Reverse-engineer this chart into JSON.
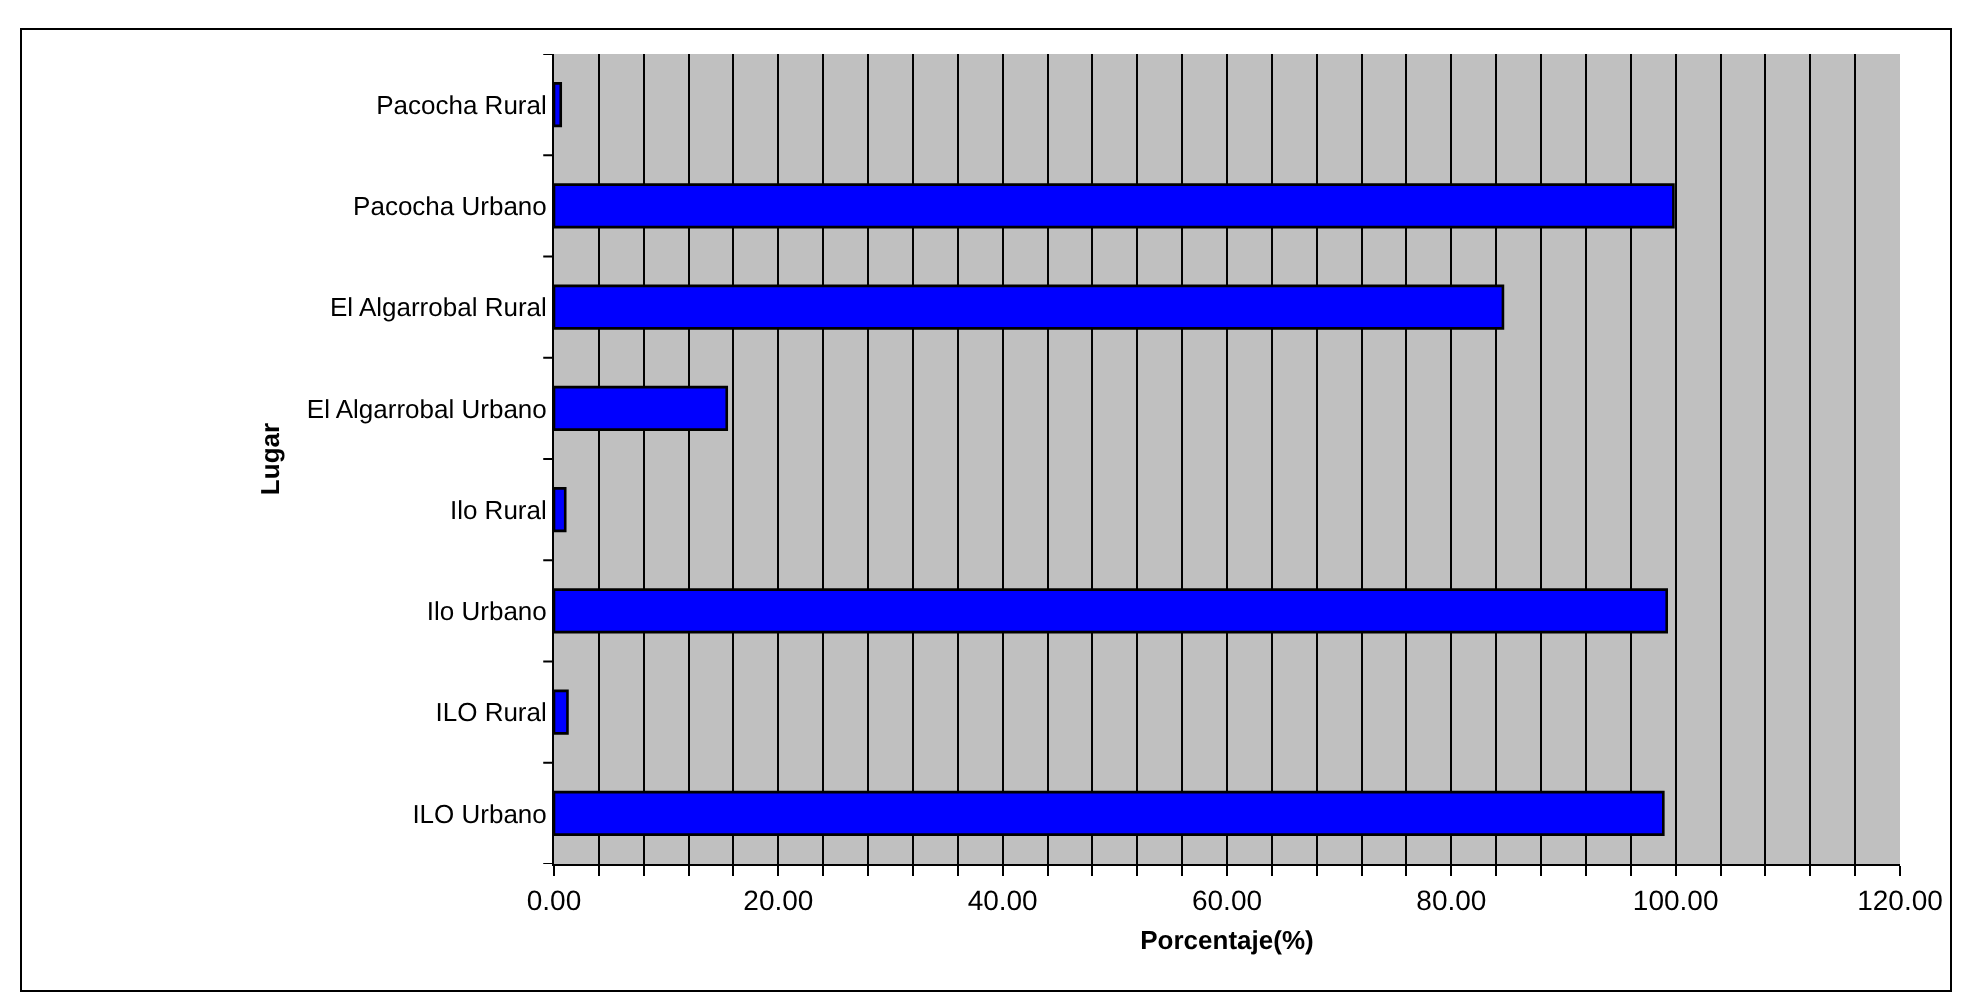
{
  "chart_data": {
    "type": "bar",
    "orientation": "horizontal",
    "xlabel": "Porcentaje(%)",
    "ylabel": "Lugar",
    "categories": [
      "Pacocha Rural",
      "Pacocha Urbano",
      "El Algarrobal Rural",
      "El Algarrobal Urbano",
      "Ilo Rural",
      "Ilo Urbano",
      "ILO Rural",
      "ILO Urbano"
    ],
    "values": [
      0.6,
      99.8,
      84.6,
      15.4,
      1.0,
      99.2,
      1.2,
      98.9
    ],
    "color": "#0000ff",
    "xlim": [
      0,
      120
    ],
    "xticks": [
      {
        "value": 0,
        "label": "0.00"
      },
      {
        "value": 4,
        "label": null
      },
      {
        "value": 8,
        "label": null
      },
      {
        "value": 12,
        "label": null
      },
      {
        "value": 16,
        "label": null
      },
      {
        "value": 20,
        "label": "20.00"
      },
      {
        "value": 24,
        "label": null
      },
      {
        "value": 28,
        "label": null
      },
      {
        "value": 32,
        "label": null
      },
      {
        "value": 36,
        "label": null
      },
      {
        "value": 40,
        "label": "40.00"
      },
      {
        "value": 44,
        "label": null
      },
      {
        "value": 48,
        "label": null
      },
      {
        "value": 52,
        "label": null
      },
      {
        "value": 56,
        "label": null
      },
      {
        "value": 60,
        "label": "60.00"
      },
      {
        "value": 64,
        "label": null
      },
      {
        "value": 68,
        "label": null
      },
      {
        "value": 72,
        "label": null
      },
      {
        "value": 76,
        "label": null
      },
      {
        "value": 80,
        "label": "80.00"
      },
      {
        "value": 84,
        "label": null
      },
      {
        "value": 88,
        "label": null
      },
      {
        "value": 92,
        "label": null
      },
      {
        "value": 96,
        "label": null
      },
      {
        "value": 100,
        "label": "100.00"
      },
      {
        "value": 104,
        "label": null
      },
      {
        "value": 108,
        "label": null
      },
      {
        "value": 112,
        "label": null
      },
      {
        "value": 116,
        "label": null
      },
      {
        "value": 120,
        "label": "120.00"
      }
    ],
    "grid": "x"
  }
}
